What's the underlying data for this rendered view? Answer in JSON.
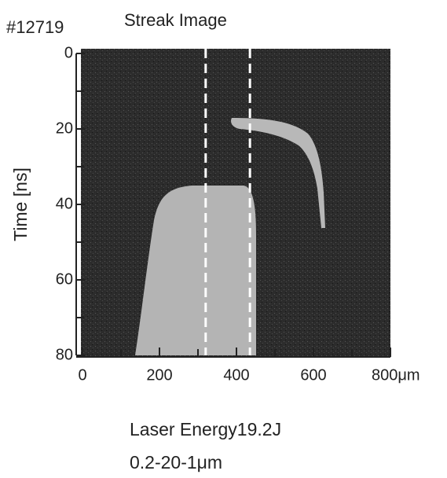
{
  "chart_data": {
    "type": "image",
    "shot": "#12719",
    "title": "Streak Image",
    "ylabel": "Time [ns]",
    "caption_lines": [
      "Laser Energy19.2J",
      "0.2-20-1μm"
    ],
    "xlim": [
      0,
      800
    ],
    "ylim": [
      80,
      0
    ],
    "xticks": [
      0,
      200,
      400,
      600,
      {
        "value": 800,
        "label": "800μm"
      }
    ],
    "yticks": [
      0,
      20,
      40,
      60,
      80
    ],
    "x_minor_ticks": [
      100,
      300,
      500,
      700
    ],
    "y_minor_ticks": [
      10,
      30,
      50,
      70
    ],
    "dashed_lines_x": [
      320,
      435
    ]
  }
}
